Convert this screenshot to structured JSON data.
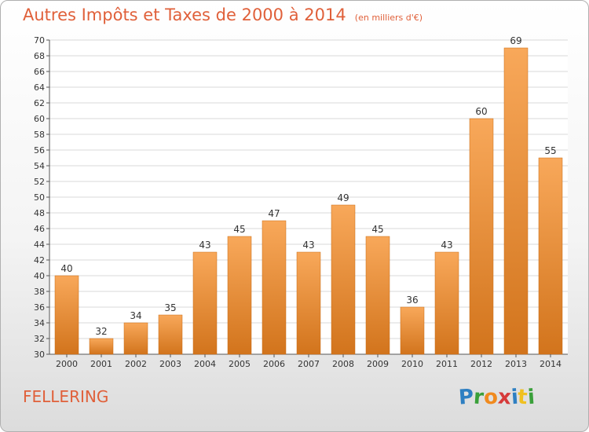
{
  "title": "Autres Impôts et Taxes de 2000 à 2014",
  "subtitle": "(en milliers d'€)",
  "commune": "FELLERING",
  "logo": {
    "text": "Proxiti",
    "letters": [
      "P",
      "r",
      "o",
      "x",
      "i",
      "t",
      "i"
    ],
    "colors": [
      "#2e7fc2",
      "#3aa03a",
      "#f08a1e",
      "#d63a3a",
      "#2e7fc2",
      "#f0c020",
      "#3aa03a"
    ]
  },
  "colors": {
    "bar_top": "#f8a85a",
    "bar_bottom": "#d2741c",
    "bar_stroke": "#c86a14",
    "title": "#e0603a",
    "grid": "#d8d8d8"
  },
  "chart_data": {
    "type": "bar",
    "title": "Autres Impôts et Taxes de 2000 à 2014",
    "subtitle": "(en milliers d'€)",
    "categories": [
      "2000",
      "2001",
      "2002",
      "2003",
      "2004",
      "2005",
      "2006",
      "2007",
      "2008",
      "2009",
      "2010",
      "2011",
      "2012",
      "2013",
      "2014"
    ],
    "values": [
      40,
      32,
      34,
      35,
      43,
      45,
      47,
      43,
      49,
      45,
      36,
      43,
      60,
      69,
      55
    ],
    "ylim": [
      30,
      70
    ],
    "ytick_step": 2,
    "grid": true,
    "data_labels": true
  }
}
